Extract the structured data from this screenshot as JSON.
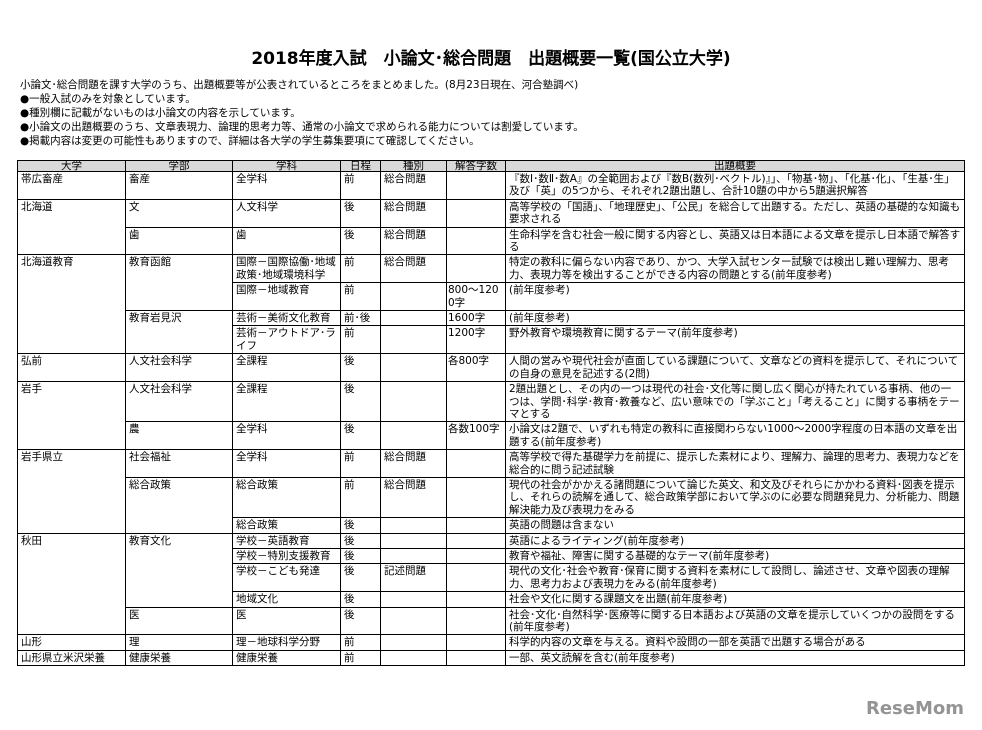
{
  "header": {
    "title": "2018年度入試　小論文･総合問題　出題概要一覧(国公立大学)"
  },
  "intro": [
    "小論文･総合問題を課す大学のうち、出題概要等が公表されているところをまとめました。(8月23日現在、河合塾調べ)",
    "●一般入試のみを対象としています。",
    "●種別欄に記載がないものは小論文の内容を示しています。",
    "●小論文の出題概要のうち、文章表現力、論理的思考力等、通常の小論文で求められる能力については割愛しています。",
    "●掲載内容は変更の可能性もありますので、詳細は各大学の学生募集要項にて確認してください。"
  ],
  "table": {
    "header": [
      "大学",
      "学部",
      "学科",
      "日程",
      "種別",
      "解答字数",
      "出題概要"
    ],
    "rows": [
      [
        "帯広畜産",
        "畜産",
        "全学科",
        "前",
        "総合問題",
        null,
        "『数Ⅰ･数Ⅱ･数A』の全範囲および『数B(数列･ベクトル)』」、「物基･物」、「化基･化」、「生基･生」及び「英」の5つから、それぞれ2題出題し、合計10題の中から5題選択解答"
      ],
      [
        "北海道",
        "文",
        "人文科学",
        "後",
        "総合問題",
        null,
        "高等学校の「国語」、「地理歴史」、「公民」を総合して出題する。ただし、英語の基礎的な知識も要求される"
      ],
      [
        null,
        "歯",
        "歯",
        "後",
        "総合問題",
        null,
        "生命科学を含む社会一般に関する内容とし、英語又は日本語による文章を提示し日本語で解答する"
      ],
      [
        "北海道教育",
        "教育函館",
        "国際－国際協働･地域政策･地域環境科学",
        "前",
        "総合問題",
        null,
        "特定の教科に偏らない内容であり、かつ、大学入試センター試験では検出し難い理解力、思考力、表現力等を検出することができる内容の問題とする(前年度参考)"
      ],
      [
        null,
        null,
        "国際－地域教育",
        "前",
        null,
        "800～1200字",
        "(前年度参考)"
      ],
      [
        null,
        "教育岩見沢",
        "芸術－美術文化教育",
        "前･後",
        null,
        "1600字",
        "(前年度参考)"
      ],
      [
        null,
        null,
        "芸術－アウトドア･ライフ",
        "前",
        null,
        "1200字",
        "野外教育や環境教育に関するテーマ(前年度参考)"
      ],
      [
        "弘前",
        "人文社会科学",
        "全課程",
        "後",
        null,
        "各800字",
        "人間の営みや現代社会が直面している課題について、文章などの資料を提示して、それについての自身の意見を記述する(2問)"
      ],
      [
        "岩手",
        "人文社会科学",
        "全課程",
        "後",
        null,
        null,
        "2題出題とし、その内の一つは現代の社会･文化等に関し広く関心が持たれている事柄、他の一つは、学問･科学･教育･教養など、広い意味での「学ぶこと」「考えること」に関する事柄をテーマとする"
      ],
      [
        null,
        "農",
        "全学科",
        "後",
        null,
        "各数100字",
        "小論文は2題で、いずれも特定の教科に直接関わらない1000～2000字程度の日本語の文章を出題する(前年度参考)"
      ],
      [
        "岩手県立",
        "社会福祉",
        "全学科",
        "前",
        "総合問題",
        null,
        "高等学校で得た基礎学力を前提に、提示した素材により、理解力、論理的思考力、表現力などを総合的に問う記述試験"
      ],
      [
        null,
        "総合政策",
        "総合政策",
        "前",
        "総合問題",
        null,
        "現代の社会がかかえる諸問題について論じた英文、和文及びそれらにかかわる資料･図表を提示し、それらの読解を通して、総合政策学部において学ぶのに必要な問題発見力、分析能力、問題解決能力及び表現力をみる"
      ],
      [
        null,
        null,
        "総合政策",
        "後",
        null,
        null,
        "英語の問題は含まない"
      ],
      [
        "秋田",
        "教育文化",
        "学校－英語教育",
        "後",
        null,
        null,
        "英語によるライティング(前年度参考)"
      ],
      [
        null,
        null,
        "学校－特別支援教育",
        "後",
        null,
        null,
        "教育や福祉、障害に関する基礎的なテーマ(前年度参考)"
      ],
      [
        null,
        null,
        "学校－こども発達",
        "後",
        "記述問題",
        null,
        "現代の文化･社会や教育･保育に関する資料を素材にして設問し、論述させ、文章や図表の理解力、思考力および表現力をみる(前年度参考)"
      ],
      [
        null,
        null,
        "地域文化",
        "後",
        null,
        null,
        "社会や文化に関する課題文を出題(前年度参考)"
      ],
      [
        null,
        "医",
        "医",
        "後",
        null,
        null,
        "社会･文化･自然科学･医療等に関する日本語および英語の文章を提示していくつかの設問をする(前年度参考)"
      ],
      [
        "山形",
        "理",
        "理－地球科学分野",
        "前",
        null,
        null,
        "科学的内容の文章を与える。資料や設問の一部を英語で出題する場合がある"
      ],
      [
        "山形県立米沢栄養",
        "健康栄養",
        "健康栄養",
        "前",
        null,
        null,
        "一部、英文読解を含む(前年度参考)"
      ]
    ]
  },
  "watermark": "ReseMom"
}
